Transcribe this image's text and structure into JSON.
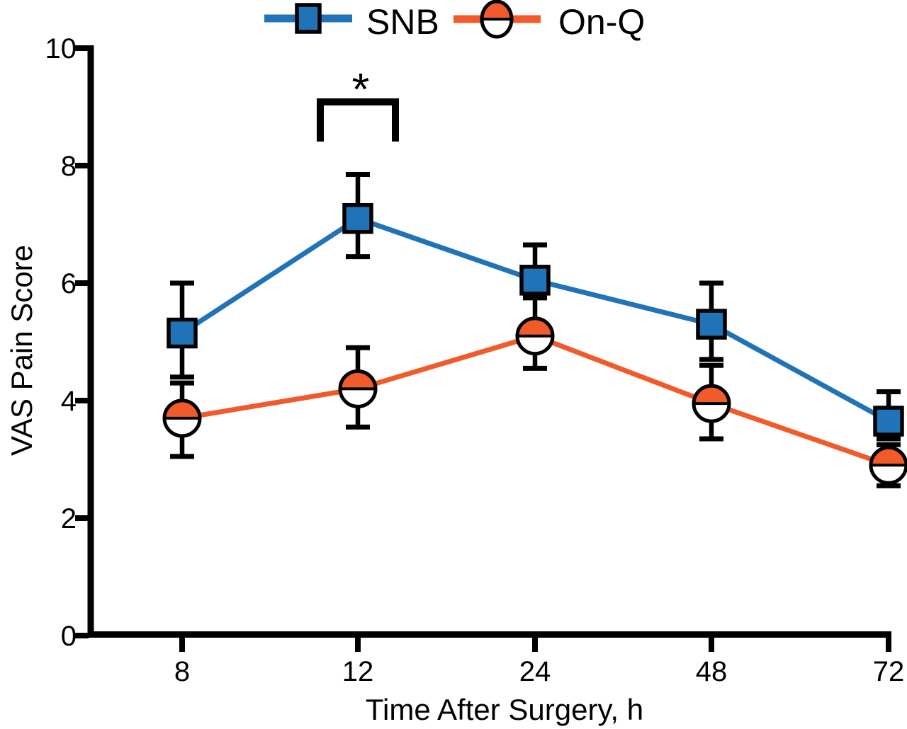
{
  "figure": {
    "background": "#ffffff",
    "axis_color": "#000000",
    "error_bar_color": "#000000"
  },
  "chart_data": {
    "type": "line",
    "title": "",
    "xlabel": "Time After Surgery, h",
    "ylabel": "VAS Pain Score",
    "x_categories": [
      "8",
      "12",
      "24",
      "48",
      "72"
    ],
    "ylim": [
      0,
      10
    ],
    "yticks": [
      0,
      2,
      4,
      6,
      8,
      10
    ],
    "grid": false,
    "legend_position": "top",
    "series": [
      {
        "name": "SNB",
        "color": "#2173B8",
        "marker": "square",
        "values": [
          5.15,
          7.1,
          6.05,
          5.3,
          3.65
        ],
        "err_upper": [
          6.0,
          7.85,
          6.65,
          6.0,
          4.15
        ],
        "err_lower": [
          4.4,
          6.45,
          5.75,
          4.7,
          3.35
        ]
      },
      {
        "name": "On-Q",
        "color": "#F15A2B",
        "marker": "half-filled-circle",
        "values": [
          3.7,
          4.2,
          5.1,
          3.95,
          2.9
        ],
        "err_upper": [
          4.3,
          4.9,
          5.75,
          4.6,
          3.25
        ],
        "err_lower": [
          3.05,
          3.55,
          4.55,
          3.35,
          2.55
        ]
      }
    ],
    "annotation": {
      "symbol": "*",
      "x_category": "12"
    }
  }
}
